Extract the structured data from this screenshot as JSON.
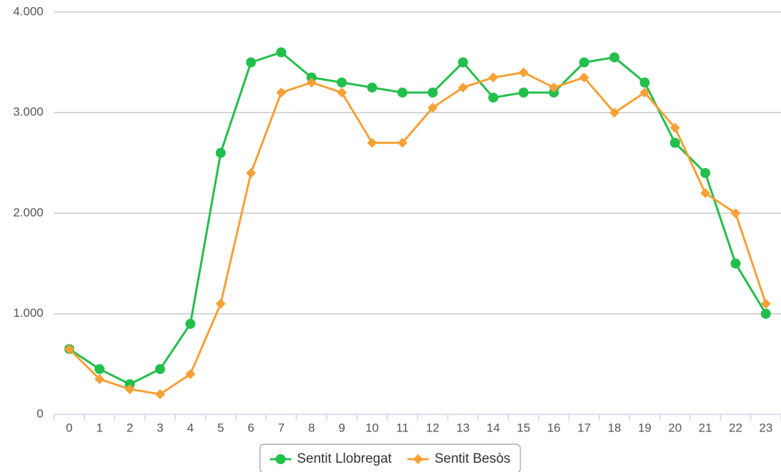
{
  "chart_data": {
    "type": "line",
    "categories": [
      "0",
      "1",
      "2",
      "3",
      "4",
      "5",
      "6",
      "7",
      "8",
      "9",
      "10",
      "11",
      "12",
      "13",
      "14",
      "15",
      "16",
      "17",
      "18",
      "19",
      "20",
      "21",
      "22",
      "23"
    ],
    "series": [
      {
        "name": "Sentit Llobregat",
        "color": "#22bf4c",
        "marker": "circle",
        "values": [
          650,
          450,
          300,
          450,
          900,
          2600,
          3500,
          3600,
          3350,
          3300,
          3250,
          3200,
          3200,
          3500,
          3150,
          3200,
          3200,
          3500,
          3550,
          3300,
          2700,
          2400,
          1500,
          1000
        ]
      },
      {
        "name": "Sentit Besòs",
        "color": "#f7a035",
        "marker": "diamond",
        "values": [
          650,
          350,
          250,
          200,
          400,
          1100,
          2400,
          3200,
          3300,
          3200,
          2700,
          2700,
          3050,
          3250,
          3350,
          3400,
          3250,
          3350,
          3000,
          3200,
          2850,
          2200,
          2000,
          1100
        ]
      }
    ],
    "ylim": [
      0,
      4000
    ],
    "yticks": [
      0,
      {
        "value": 1000,
        "label": "1.000"
      },
      {
        "value": 2000,
        "label": "2.000"
      },
      {
        "value": 3000,
        "label": "3.000"
      },
      {
        "value": 4000,
        "label": "4.000"
      }
    ],
    "grid": true,
    "legend": "bottom"
  }
}
